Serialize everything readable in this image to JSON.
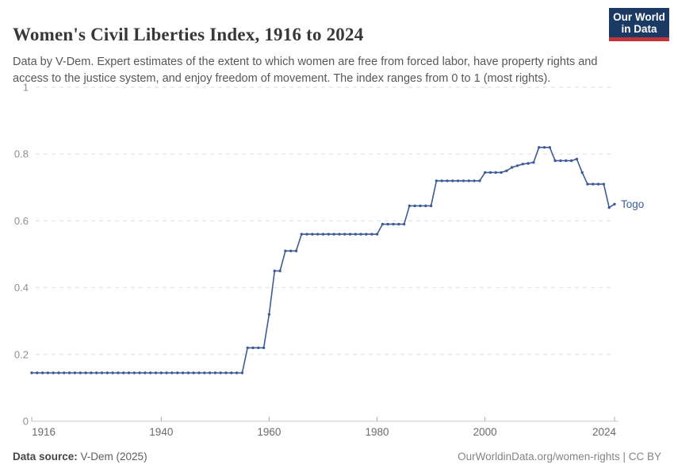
{
  "header": {
    "title": "Women's Civil Liberties Index, 1916 to 2024",
    "subtitle": "Data by V-Dem. Expert estimates of the extent to which women are free from forced labor, have property rights and access to the justice system, and enjoy freedom of movement. The index ranges from 0 to 1 (most rights).",
    "logo": {
      "line1": "Our World",
      "line2": "in Data",
      "bg_color": "#1a3a63",
      "accent_color": "#c0353c"
    }
  },
  "chart_data": {
    "type": "line",
    "title": "Women's Civil Liberties Index, 1916 to 2024",
    "xlabel": "",
    "ylabel": "",
    "xlim": [
      1916,
      2024
    ],
    "ylim": [
      0,
      1
    ],
    "x_ticks": [
      1916,
      1940,
      1960,
      1980,
      2000,
      2024
    ],
    "y_ticks": [
      0,
      0.2,
      0.4,
      0.6,
      0.8,
      1
    ],
    "grid": "horizontal-dashed",
    "legend_position": "end-of-line-label",
    "series": [
      {
        "name": "Togo",
        "color": "#3d5c97",
        "x_start": 1916,
        "x_step": 1,
        "values": [
          0.145,
          0.145,
          0.145,
          0.145,
          0.145,
          0.145,
          0.145,
          0.145,
          0.145,
          0.145,
          0.145,
          0.145,
          0.145,
          0.145,
          0.145,
          0.145,
          0.145,
          0.145,
          0.145,
          0.145,
          0.145,
          0.145,
          0.145,
          0.145,
          0.145,
          0.145,
          0.145,
          0.145,
          0.145,
          0.145,
          0.145,
          0.145,
          0.145,
          0.145,
          0.145,
          0.145,
          0.145,
          0.145,
          0.145,
          0.145,
          0.22,
          0.22,
          0.22,
          0.22,
          0.32,
          0.45,
          0.45,
          0.51,
          0.51,
          0.51,
          0.56,
          0.56,
          0.56,
          0.56,
          0.56,
          0.56,
          0.56,
          0.56,
          0.56,
          0.56,
          0.56,
          0.56,
          0.56,
          0.56,
          0.56,
          0.59,
          0.59,
          0.59,
          0.59,
          0.59,
          0.645,
          0.645,
          0.645,
          0.645,
          0.645,
          0.72,
          0.72,
          0.72,
          0.72,
          0.72,
          0.72,
          0.72,
          0.72,
          0.72,
          0.745,
          0.745,
          0.745,
          0.745,
          0.75,
          0.76,
          0.765,
          0.77,
          0.772,
          0.775,
          0.82,
          0.82,
          0.82,
          0.78,
          0.78,
          0.78,
          0.78,
          0.785,
          0.745,
          0.71,
          0.71,
          0.71,
          0.71,
          0.64,
          0.65
        ]
      }
    ],
    "end_label": "Togo"
  },
  "footer": {
    "source_label": "Data source:",
    "source_value": " V-Dem (2025)",
    "credit": "OurWorldinData.org/women-rights | CC BY"
  }
}
